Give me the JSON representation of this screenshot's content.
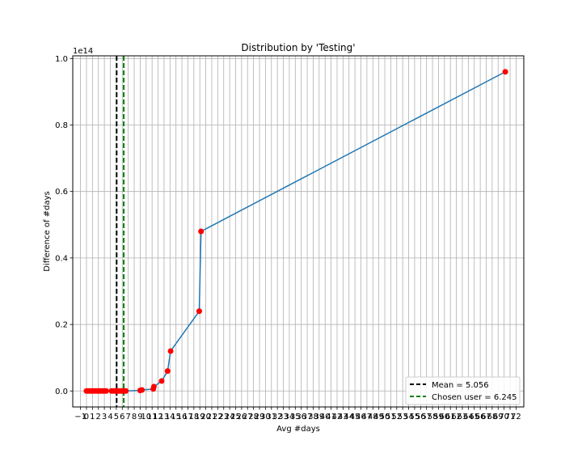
{
  "chart_data": {
    "type": "line",
    "title": "Distribution by 'Testing'",
    "xlabel": "Avg #days",
    "ylabel": "Difference of #days",
    "y_offset_label": "1e14",
    "xlim": [
      -2.3,
      73.3
    ],
    "ylim": [
      -0.048,
      1.008
    ],
    "xticks": [
      -1,
      0,
      1,
      2,
      3,
      4,
      5,
      6,
      7,
      8,
      9,
      10,
      11,
      12,
      13,
      14,
      15,
      16,
      17,
      18,
      19,
      20,
      21,
      22,
      23,
      24,
      25,
      26,
      27,
      28,
      29,
      30,
      31,
      32,
      33,
      34,
      35,
      36,
      37,
      38,
      39,
      40,
      41,
      42,
      43,
      44,
      45,
      46,
      47,
      48,
      49,
      50,
      51,
      52,
      53,
      54,
      55,
      56,
      57,
      58,
      59,
      60,
      61,
      62,
      63,
      64,
      65,
      66,
      67,
      68,
      69,
      70,
      71,
      72
    ],
    "xtick_labels": [
      "−1",
      "0",
      "1",
      "2",
      "3",
      "4",
      "5",
      "6",
      "7",
      "8",
      "9",
      "10",
      "11",
      "12",
      "13",
      "14",
      "15",
      "16",
      "17",
      "18",
      "19",
      "20",
      "21",
      "22",
      "23",
      "24",
      "25",
      "26",
      "27",
      "28",
      "29",
      "30",
      "31",
      "32",
      "33",
      "34",
      "35",
      "36",
      "37",
      "38",
      "39",
      "40",
      "41",
      "42",
      "43",
      "44",
      "45",
      "46",
      "47",
      "48",
      "49",
      "50",
      "51",
      "52",
      "53",
      "54",
      "55",
      "56",
      "57",
      "58",
      "59",
      "60",
      "61",
      "62",
      "63",
      "64",
      "65",
      "66",
      "67",
      "68",
      "69",
      "70",
      "71",
      "72"
    ],
    "yticks": [
      0.0,
      0.2,
      0.4,
      0.6,
      0.8,
      1.0
    ],
    "ytick_labels": [
      "0.0",
      "0.2",
      "0.4",
      "0.6",
      "0.8",
      "1.0"
    ],
    "grid": true,
    "legend_position": "lower-right",
    "series": [
      {
        "color": "#1f77b4",
        "marker_color": "#ff0000",
        "x": [
          0,
          0.3,
          0.6,
          0.9,
          1.2,
          1.5,
          1.8,
          2.1,
          2.4,
          2.7,
          3.0,
          3.3,
          4.2,
          4.5,
          4.8,
          5.1,
          5.4,
          5.7,
          6.0,
          6.3,
          6.6,
          9.0,
          9.3,
          11.2,
          11.3,
          12.6,
          13.6,
          14.1,
          18.9,
          19.2,
          70.2
        ],
        "y": [
          0,
          0,
          0,
          0,
          0,
          0,
          0,
          0,
          0,
          0,
          0,
          0,
          0,
          0,
          0,
          0,
          0,
          0,
          0,
          0,
          0,
          0.0015,
          0.003,
          0.006,
          0.013,
          0.03,
          0.06,
          0.12,
          0.24,
          0.48,
          0.96
        ]
      }
    ],
    "vlines": [
      {
        "label": "Mean = 5.056",
        "x": 5.056,
        "color": "#000000",
        "style": "dashed"
      },
      {
        "label": "Chosen user = 6.245",
        "x": 6.245,
        "color": "#008000",
        "style": "dashed"
      }
    ]
  }
}
